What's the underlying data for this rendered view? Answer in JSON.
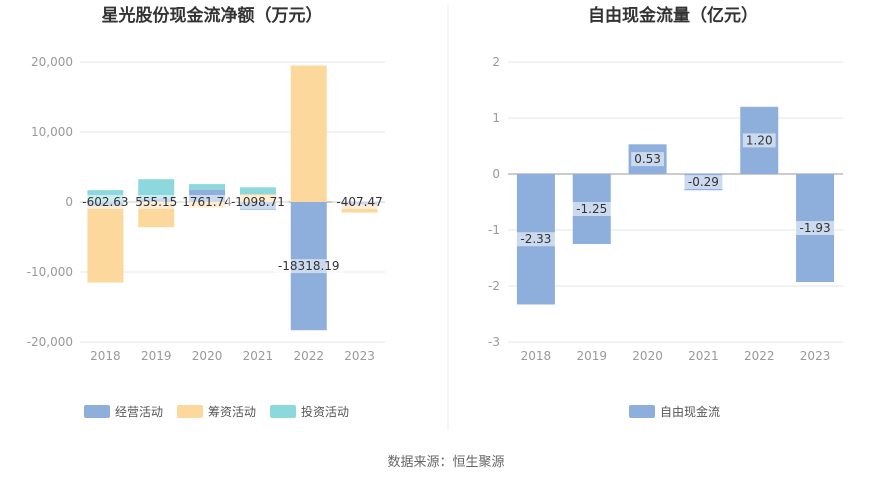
{
  "source_text": "数据来源：恒生聚源",
  "chart_data": [
    {
      "type": "bar",
      "stacked": true,
      "title": "星光股份现金流净额（万元）",
      "categories": [
        "2018",
        "2019",
        "2020",
        "2021",
        "2022",
        "2023"
      ],
      "yticks": [
        "20,000",
        "10,000",
        "0",
        "-10,000",
        "-20,000"
      ],
      "ylim": [
        -20000,
        20000
      ],
      "grid": true,
      "legend_position": "bottom",
      "series": [
        {
          "name": "经营活动",
          "color": "#8eaedc",
          "values": [
            -602.63,
            555.15,
            1761.74,
            -1098.71,
            -18318.19,
            -407.47
          ],
          "labels": [
            "-602.63",
            "555.15",
            "1761.74",
            "-1098.71",
            "-18318.19",
            "-407.47"
          ]
        },
        {
          "name": "筹资活动",
          "color": "#fdd89d",
          "values": [
            -10900,
            -3600,
            -800,
            1100,
            19500,
            -1100
          ]
        },
        {
          "name": "投资活动",
          "color": "#8dd8dc",
          "values": [
            1700,
            2700,
            800,
            1000,
            0,
            0
          ]
        }
      ]
    },
    {
      "type": "bar",
      "title": "自由现金流量（亿元）",
      "categories": [
        "2018",
        "2019",
        "2020",
        "2021",
        "2022",
        "2023"
      ],
      "yticks": [
        "2",
        "1",
        "0",
        "-1",
        "-2",
        "-3"
      ],
      "ylim": [
        -3,
        2
      ],
      "grid": true,
      "legend_position": "bottom",
      "series": [
        {
          "name": "自由现金流",
          "color": "#8eaedc",
          "values": [
            -2.33,
            -1.25,
            0.53,
            -0.29,
            1.2,
            -1.93
          ],
          "labels": [
            "-2.33",
            "-1.25",
            "0.53",
            "-0.29",
            "1.20",
            "-1.93"
          ]
        }
      ]
    }
  ]
}
